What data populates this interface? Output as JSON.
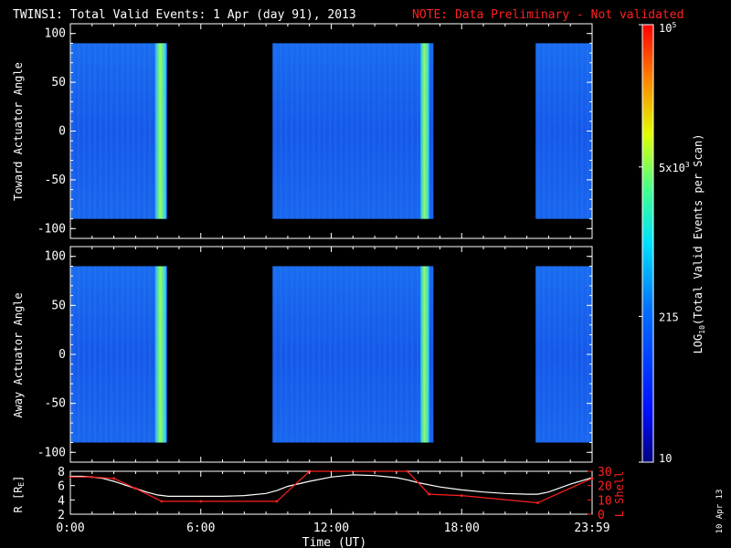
{
  "chart_data": [
    {
      "type": "heatmap",
      "title": "TWINS1: Total Valid Events:  1 Apr (day  91), 2013",
      "note": "NOTE: Data Preliminary - Not validated",
      "ylabel": "Toward Actuator Angle",
      "ylim": [
        -110,
        110
      ],
      "yticks": [
        100,
        50,
        0,
        -50,
        -100
      ],
      "xlim": [
        0,
        24
      ],
      "data_blocks": [
        {
          "start_hr": 0.0,
          "end_hr": 4.45,
          "bright_stripe_hr": [
            3.9,
            4.4
          ],
          "level": "low"
        },
        {
          "start_hr": 9.3,
          "end_hr": 16.7,
          "bright_stripe_hr": [
            16.1,
            16.5
          ],
          "level": "low"
        },
        {
          "start_hr": 21.4,
          "end_hr": 24.0,
          "level": "low"
        }
      ]
    },
    {
      "type": "heatmap",
      "ylabel": "Away Actuator Angle",
      "ylim": [
        -110,
        110
      ],
      "yticks": [
        100,
        50,
        0,
        -50,
        -100
      ],
      "xlim": [
        0,
        24
      ],
      "data_blocks": [
        {
          "start_hr": 0.0,
          "end_hr": 4.45,
          "bright_stripe_hr": [
            3.9,
            4.4
          ],
          "level": "low"
        },
        {
          "start_hr": 9.3,
          "end_hr": 16.7,
          "bright_stripe_hr": [
            16.1,
            16.5
          ],
          "level": "low"
        },
        {
          "start_hr": 21.4,
          "end_hr": 24.0,
          "level": "low"
        }
      ]
    },
    {
      "type": "line",
      "ylabel_left": "R [R",
      "ylabel_left_sub": "E",
      "ylabel_left_end": "]",
      "ylabel_right": "L Shell",
      "ylim_left": [
        2,
        8
      ],
      "yticks_left": [
        8,
        6,
        4,
        2
      ],
      "ylim_right": [
        0,
        30
      ],
      "yticks_right": [
        30,
        20,
        10,
        0
      ],
      "xlabel": "Time (UT)",
      "xticks": [
        "0:00",
        "6:00",
        "12:00",
        "18:00",
        "23:59"
      ],
      "xtick_values": [
        0,
        6,
        12,
        18,
        24
      ],
      "series": [
        {
          "color": "#ffffff",
          "axis": "left",
          "x": [
            0,
            0.5,
            1,
            1.5,
            2,
            2.5,
            3,
            3.5,
            4,
            4.5,
            5,
            6,
            7,
            8,
            9,
            9.5,
            10,
            11,
            12,
            13,
            14,
            15,
            15.5,
            16,
            17,
            18,
            19,
            20,
            21,
            21.5,
            22,
            23,
            24
          ],
          "y": [
            7.3,
            7.3,
            7.2,
            7.0,
            6.6,
            6.1,
            5.6,
            5.1,
            4.7,
            4.5,
            4.5,
            4.5,
            4.5,
            4.6,
            4.9,
            5.3,
            5.9,
            6.6,
            7.2,
            7.5,
            7.4,
            7.1,
            6.8,
            6.4,
            5.8,
            5.4,
            5.1,
            4.9,
            4.8,
            4.8,
            5.1,
            6.2,
            7.1
          ]
        },
        {
          "color": "#ff2020",
          "axis": "right",
          "x": [
            0,
            1,
            2,
            3,
            4.2,
            6,
            9.5,
            11,
            11.5,
            15,
            15.5,
            16.5,
            18,
            21.5,
            24
          ],
          "y": [
            26,
            26,
            25,
            18,
            9,
            9,
            9,
            30,
            32,
            32,
            30,
            14,
            13,
            8,
            25
          ]
        }
      ]
    },
    {
      "type": "colorbar",
      "label_pre": "LOG",
      "label_sub": "10",
      "label_post": "(Total Valid Events per Scan)",
      "labels": [
        {
          "base": "10",
          "exp": "5"
        },
        {
          "base": "5x10",
          "exp": "3"
        },
        {
          "base": "215",
          "exp": ""
        },
        {
          "base": "10",
          "exp": ""
        }
      ],
      "label_values": [
        100000,
        5000,
        215,
        10
      ],
      "range": [
        10,
        100000
      ],
      "scale": "log"
    }
  ],
  "date_stamp": "10 Apr 13",
  "colors": {
    "note": "#ff2020",
    "ephem_red": "#ff2020",
    "bg": "#000000"
  }
}
